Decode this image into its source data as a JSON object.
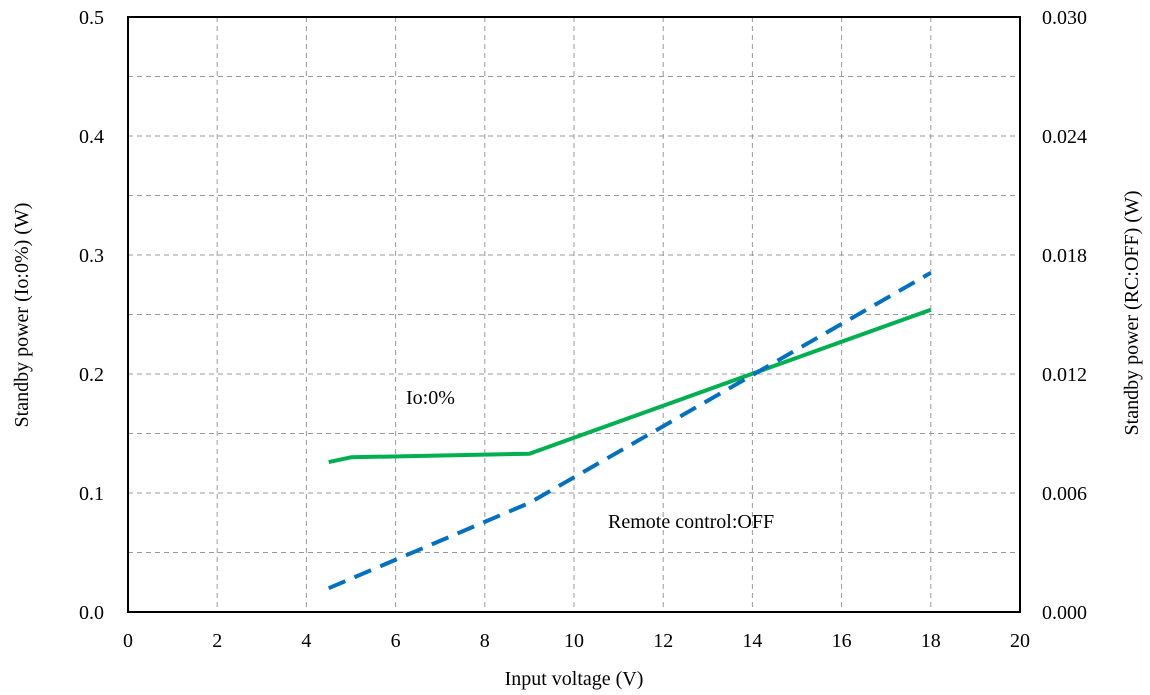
{
  "chart_data": {
    "type": "line",
    "title": "",
    "xlabel": "Input voltage (V)",
    "ylabel_left": "Standby power (Io:0%) (W)",
    "ylabel_right": "Standby power (RC:OFF) (W)",
    "xlim": [
      0,
      20
    ],
    "ylim_left": [
      0,
      0.5
    ],
    "ylim_right": [
      0,
      0.03
    ],
    "x_ticks": [
      "0",
      "2",
      "4",
      "6",
      "8",
      "10",
      "12",
      "14",
      "16",
      "18",
      "20"
    ],
    "y_left_ticks": [
      "0.0",
      "0.1",
      "0.2",
      "0.3",
      "0.4",
      "0.5"
    ],
    "y_right_ticks": [
      "0.000",
      "0.006",
      "0.012",
      "0.018",
      "0.024",
      "0.030"
    ],
    "grid": true,
    "series": [
      {
        "name": "Io:0%",
        "axis": "left",
        "color": "#00b050",
        "style": "solid",
        "points": [
          [
            4.5,
            0.126
          ],
          [
            5,
            0.13
          ],
          [
            9,
            0.133
          ],
          [
            18,
            0.254
          ]
        ]
      },
      {
        "name": "Remote control:OFF",
        "axis": "right",
        "color": "#0070c0",
        "style": "dashed",
        "points": [
          [
            4.5,
            0.0012
          ],
          [
            9,
            0.0055
          ],
          [
            18,
            0.0171
          ]
        ]
      }
    ],
    "annotations": [
      {
        "text": "Io:0%",
        "series": 0
      },
      {
        "text": "Remote control:OFF",
        "series": 1
      }
    ]
  }
}
